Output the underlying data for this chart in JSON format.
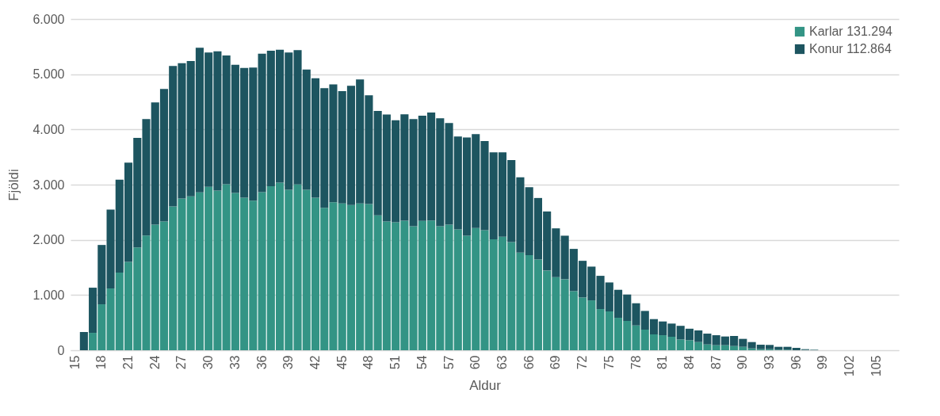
{
  "chart_data": {
    "type": "bar",
    "xlabel": "Aldur",
    "ylabel": "Fjöldi",
    "stacked": true,
    "grid": "y",
    "legend": "top right",
    "categories": [
      "15",
      null,
      null,
      "18",
      null,
      null,
      "21",
      null,
      null,
      "24",
      null,
      null,
      "27",
      null,
      null,
      "30",
      null,
      null,
      "33",
      null,
      null,
      "36",
      null,
      null,
      "39",
      null,
      null,
      "42",
      null,
      null,
      "45",
      null,
      null,
      "48",
      null,
      null,
      "51",
      null,
      null,
      "54",
      null,
      null,
      "57",
      null,
      null,
      "60",
      null,
      null,
      "63",
      null,
      null,
      "66",
      null,
      null,
      "69",
      null,
      null,
      "72",
      null,
      null,
      "75",
      null,
      null,
      "78",
      null,
      null,
      "81",
      null,
      null,
      "84",
      null,
      null,
      "87",
      null,
      null,
      "90",
      null,
      null,
      "93",
      null,
      null,
      "96",
      null,
      null,
      "99",
      null,
      null,
      "102",
      null,
      null,
      "105",
      null,
      null
    ],
    "ylim": [
      0,
      6000
    ],
    "yticks": [
      0,
      {
        "value": 1000,
        "label": "1.000"
      },
      {
        "value": 2000,
        "label": "2.000"
      },
      {
        "value": 3000,
        "label": "3.000"
      },
      {
        "value": 4000,
        "label": "4.000"
      },
      {
        "value": 5000,
        "label": "5.000"
      },
      {
        "value": 6000,
        "label": "6.000"
      }
    ],
    "series": [
      {
        "name": "Karlar 131.294",
        "color": "#339485",
        "values": [
          0,
          0,
          315,
          832,
          1119,
          1405,
          1601,
          1864,
          2079,
          2275,
          2333,
          2605,
          2749,
          2787,
          2859,
          2959,
          2892,
          3007,
          2849,
          2763,
          2710,
          2863,
          2973,
          3035,
          2906,
          3002,
          2906,
          2763,
          2581,
          2682,
          2658,
          2629,
          2658,
          2648,
          2443,
          2333,
          2318,
          2347,
          2247,
          2342,
          2352,
          2247,
          2275,
          2189,
          2075,
          2213,
          2175,
          2008,
          2055,
          1960,
          1769,
          1721,
          1644,
          1444,
          1324,
          1286,
          1071,
          956,
          903,
          746,
          703,
          588,
          531,
          449,
          373,
          287,
          272,
          244,
          195,
          182,
          148,
          105,
          91,
          91,
          76,
          62,
          33,
          19,
          19,
          10,
          10,
          0,
          5,
          3,
          0,
          0,
          0,
          0,
          0,
          0,
          0,
          0,
          0
        ]
      },
      {
        "name": "Konur 112.864",
        "color": "#1d5560",
        "values": [
          0,
          330,
          818,
          1075,
          1429,
          1683,
          1798,
          1984,
          2108,
          2214,
          2399,
          2543,
          2452,
          2452,
          2619,
          2433,
          2524,
          2332,
          2323,
          2352,
          2410,
          2510,
          2452,
          2410,
          2486,
          2433,
          2180,
          2165,
          2166,
          2132,
          2036,
          2161,
          2246,
          1970,
          1893,
          1936,
          1850,
          1926,
          1940,
          1908,
          1955,
          1955,
          1841,
          1683,
          1778,
          1702,
          1616,
          1577,
          1530,
          1486,
          1362,
          1233,
          1114,
          1070,
          884,
          789,
          765,
          664,
          612,
          602,
          525,
          507,
          478,
          402,
          339,
          277,
          249,
          239,
          247,
          208,
          211,
          196,
          181,
          158,
          182,
          144,
          115,
          81,
          77,
          52,
          52,
          43,
          14,
          7,
          null,
          null,
          0,
          0,
          0,
          0,
          0,
          0,
          0
        ]
      }
    ]
  }
}
